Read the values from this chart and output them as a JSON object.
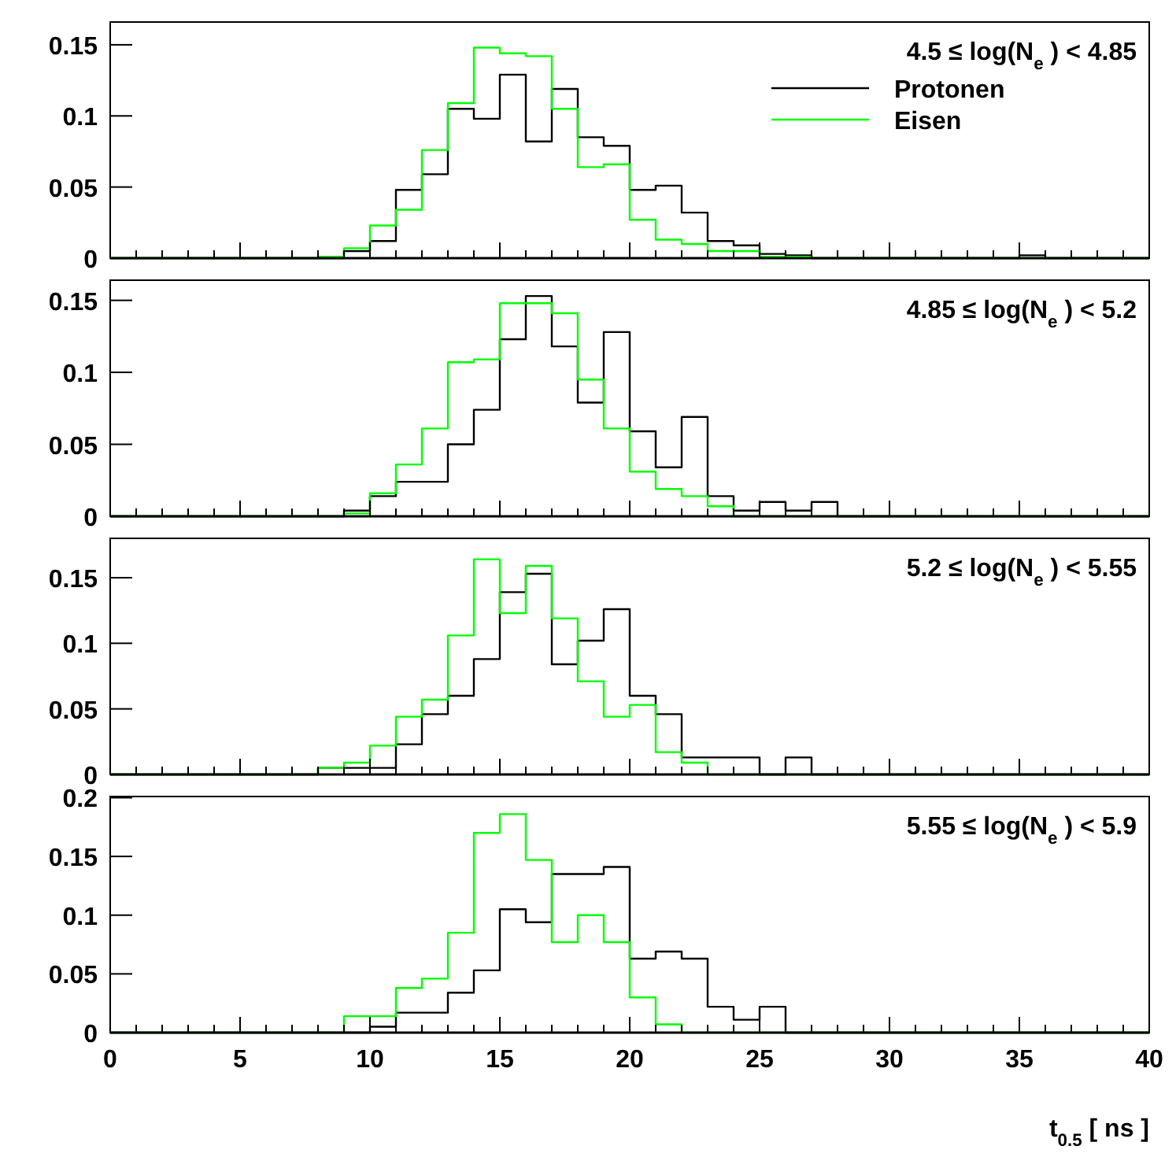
{
  "chart_data": [
    {
      "type": "histogram",
      "title": "4.5 ≤ log(N$_{e}$ ) < 4.85",
      "bins": [
        0,
        1,
        2,
        3,
        4,
        5,
        6,
        7,
        8,
        9,
        10,
        11,
        12,
        13,
        14,
        15,
        16,
        17,
        18,
        19,
        20,
        21,
        22,
        23,
        24,
        25,
        26,
        27,
        28,
        29,
        30,
        31,
        32,
        33,
        34,
        35,
        36,
        37,
        38,
        39,
        40
      ],
      "xlim": [
        0,
        40
      ],
      "xticks": [
        0,
        5,
        10,
        15,
        20,
        25,
        30,
        35,
        40
      ],
      "ylim": [
        0,
        0.166
      ],
      "yticks": [
        0,
        0.05,
        0.1,
        0.15
      ],
      "tick_labels": "y",
      "legend": "top right",
      "series": [
        {
          "name": "Protonen",
          "color": "#000000",
          "values": [
            0,
            0,
            0,
            0,
            0,
            0,
            0,
            0,
            0,
            0.005,
            0.012,
            0.048,
            0.059,
            0.105,
            0.098,
            0.129,
            0.082,
            0.119,
            0.085,
            0.079,
            0.048,
            0.051,
            0.032,
            0.012,
            0.009,
            0.003,
            0.002,
            0,
            0,
            0,
            0,
            0,
            0,
            0,
            0,
            0.002,
            0,
            0,
            0,
            0
          ]
        },
        {
          "name": "Eisen",
          "color": "#00ff00",
          "values": [
            0,
            0,
            0,
            0,
            0,
            0,
            0,
            0,
            0.001,
            0.007,
            0.023,
            0.034,
            0.076,
            0.109,
            0.148,
            0.144,
            0.142,
            0.105,
            0.064,
            0.066,
            0.027,
            0.013,
            0.01,
            0.005,
            0.005,
            0.001,
            0.001,
            0,
            0,
            0,
            0,
            0,
            0,
            0,
            0,
            0,
            0,
            0,
            0,
            0
          ]
        }
      ]
    },
    {
      "type": "histogram",
      "title": "4.85 ≤ log(N$_{e}$ ) < 5.2",
      "bins": [
        0,
        1,
        2,
        3,
        4,
        5,
        6,
        7,
        8,
        9,
        10,
        11,
        12,
        13,
        14,
        15,
        16,
        17,
        18,
        19,
        20,
        21,
        22,
        23,
        24,
        25,
        26,
        27,
        28,
        29,
        30,
        31,
        32,
        33,
        34,
        35,
        36,
        37,
        38,
        39,
        40
      ],
      "xlim": [
        0,
        40
      ],
      "xticks": [
        0,
        5,
        10,
        15,
        20,
        25,
        30,
        35,
        40
      ],
      "ylim": [
        0,
        0.164
      ],
      "yticks": [
        0,
        0.05,
        0.1,
        0.15
      ],
      "tick_labels": "y",
      "series": [
        {
          "color": "#000000",
          "values": [
            0,
            0,
            0,
            0,
            0,
            0,
            0,
            0,
            0,
            0.004,
            0.014,
            0.024,
            0.024,
            0.05,
            0.074,
            0.123,
            0.153,
            0.118,
            0.079,
            0.128,
            0.059,
            0.034,
            0.069,
            0.014,
            0.004,
            0.01,
            0.004,
            0.01,
            0,
            0,
            0,
            0,
            0,
            0,
            0,
            0,
            0,
            0,
            0,
            0
          ]
        },
        {
          "color": "#00ff00",
          "values": [
            0,
            0,
            0,
            0,
            0,
            0,
            0,
            0,
            0,
            0.002,
            0.016,
            0.036,
            0.061,
            0.107,
            0.109,
            0.148,
            0.148,
            0.141,
            0.095,
            0.061,
            0.031,
            0.019,
            0.014,
            0.007,
            0,
            0,
            0,
            0,
            0,
            0,
            0,
            0,
            0,
            0,
            0,
            0,
            0,
            0,
            0,
            0
          ]
        }
      ]
    },
    {
      "type": "histogram",
      "title": "5.2 ≤ log(N$_{e}$ ) < 5.55",
      "bins": [
        0,
        1,
        2,
        3,
        4,
        5,
        6,
        7,
        8,
        9,
        10,
        11,
        12,
        13,
        14,
        15,
        16,
        17,
        18,
        19,
        20,
        21,
        22,
        23,
        24,
        25,
        26,
        27,
        28,
        29,
        30,
        31,
        32,
        33,
        34,
        35,
        36,
        37,
        38,
        39,
        40
      ],
      "xlim": [
        0,
        40
      ],
      "xticks": [
        0,
        5,
        10,
        15,
        20,
        25,
        30,
        35,
        40
      ],
      "ylim": [
        0,
        0.18
      ],
      "yticks": [
        0,
        0.05,
        0.1,
        0.15
      ],
      "tick_labels": "y",
      "series": [
        {
          "color": "#000000",
          "values": [
            0,
            0,
            0,
            0,
            0,
            0,
            0,
            0,
            0.005,
            0.005,
            0.005,
            0.023,
            0.046,
            0.06,
            0.088,
            0.139,
            0.153,
            0.084,
            0.102,
            0.126,
            0.06,
            0.046,
            0.013,
            0.013,
            0.013,
            0,
            0.013,
            0,
            0,
            0,
            0,
            0,
            0,
            0,
            0,
            0,
            0,
            0,
            0,
            0
          ]
        },
        {
          "color": "#00ff00",
          "values": [
            0,
            0,
            0,
            0,
            0,
            0,
            0,
            0,
            0.005,
            0.009,
            0.022,
            0.044,
            0.057,
            0.106,
            0.164,
            0.123,
            0.159,
            0.119,
            0.071,
            0.044,
            0.053,
            0.017,
            0.009,
            0,
            0,
            0,
            0,
            0,
            0,
            0,
            0,
            0,
            0,
            0,
            0,
            0,
            0,
            0,
            0,
            0
          ]
        }
      ]
    },
    {
      "type": "histogram",
      "title": "5.55 ≤ log(N$_{e}$ ) < 5.9",
      "xlabel": "t$_{0.5}$ [ ns ]",
      "bins": [
        0,
        1,
        2,
        3,
        4,
        5,
        6,
        7,
        8,
        9,
        10,
        11,
        12,
        13,
        14,
        15,
        16,
        17,
        18,
        19,
        20,
        21,
        22,
        23,
        24,
        25,
        26,
        27,
        28,
        29,
        30,
        31,
        32,
        33,
        34,
        35,
        36,
        37,
        38,
        39,
        40
      ],
      "xlim": [
        0,
        40
      ],
      "xticks": [
        0,
        5,
        10,
        15,
        20,
        25,
        30,
        35,
        40
      ],
      "ylim": [
        0,
        0.201
      ],
      "yticks": [
        0,
        0.05,
        0.1,
        0.15,
        0.2
      ],
      "series": [
        {
          "color": "#000000",
          "values": [
            0,
            0,
            0,
            0,
            0,
            0,
            0,
            0,
            0,
            0,
            0.005,
            0.017,
            0.017,
            0.034,
            0.053,
            0.105,
            0.094,
            0.135,
            0.135,
            0.141,
            0.063,
            0.069,
            0.063,
            0.022,
            0.011,
            0.022,
            0,
            0,
            0,
            0,
            0,
            0,
            0,
            0,
            0,
            0,
            0,
            0,
            0,
            0
          ]
        },
        {
          "color": "#00ff00",
          "values": [
            0,
            0,
            0,
            0,
            0,
            0,
            0,
            0,
            0,
            0.014,
            0.014,
            0.038,
            0.046,
            0.085,
            0.17,
            0.186,
            0.147,
            0.077,
            0.1,
            0.077,
            0.03,
            0.007,
            0,
            0,
            0,
            0,
            0,
            0,
            0,
            0,
            0,
            0,
            0,
            0,
            0,
            0,
            0,
            0,
            0,
            0
          ]
        }
      ]
    }
  ]
}
